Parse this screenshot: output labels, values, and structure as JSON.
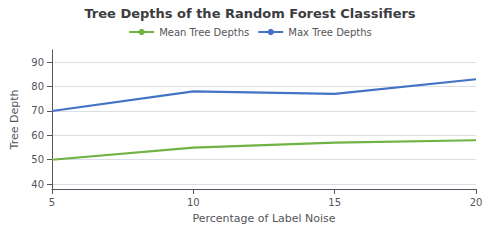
{
  "chart_data": {
    "type": "line",
    "title": "Tree Depths of the Random Forest Classifiers",
    "xlabel": "Percentage of Label Noise",
    "ylabel": "Tree Depth",
    "x": [
      5,
      10,
      15,
      20
    ],
    "series": [
      {
        "name": "Mean Tree Depths",
        "color": "#70b244",
        "values": [
          50,
          55,
          57,
          58
        ]
      },
      {
        "name": "Max Tree Depths",
        "color": "#4472c4",
        "values": [
          70,
          78,
          77,
          83
        ]
      }
    ],
    "xlim": [
      5,
      20
    ],
    "xticks": [
      5,
      10,
      15,
      20
    ],
    "ylim": [
      38,
      95
    ],
    "yticks": [
      40,
      50,
      60,
      70,
      80,
      90
    ],
    "grid": true,
    "legend": "top"
  }
}
